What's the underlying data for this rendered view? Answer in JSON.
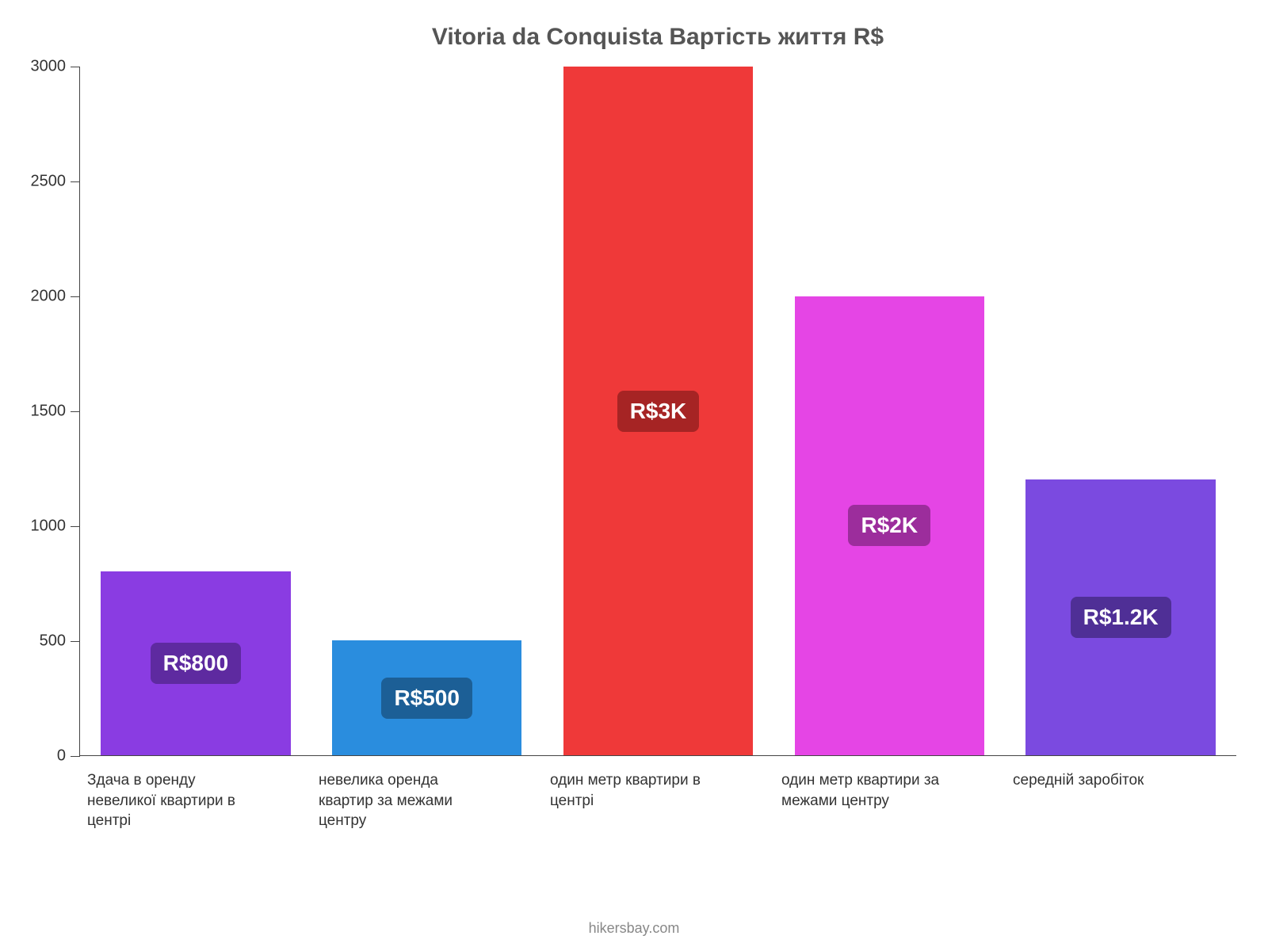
{
  "chart": {
    "type": "bar",
    "title": "Vitoria da Conquista Вартість життя R$",
    "title_color": "#555555",
    "title_fontsize": 30,
    "background_color": "#ffffff",
    "axis_color": "#444444",
    "label_color": "#333333",
    "label_fontsize": 19,
    "ytick_fontsize": 20,
    "ylim": [
      0,
      3000
    ],
    "ytick_step": 500,
    "yticks": [
      0,
      500,
      1000,
      1500,
      2000,
      2500,
      3000
    ],
    "bar_width": 0.82,
    "bars": [
      {
        "category": "Здача в оренду невеликої квартири в центрі",
        "value": 800,
        "value_label": "R$800",
        "color": "#8a3ce2",
        "label_bg": "#5e2aa0"
      },
      {
        "category": "невелика оренда квартир за межами центру",
        "value": 500,
        "value_label": "R$500",
        "color": "#2a8dde",
        "label_bg": "#1c5f96"
      },
      {
        "category": "один метр квартири в центрі",
        "value": 3000,
        "value_label": "R$3K",
        "color": "#ef3939",
        "label_bg": "#a62424"
      },
      {
        "category": "один метр квартири за межами центру",
        "value": 2000,
        "value_label": "R$2K",
        "color": "#e545e5",
        "label_bg": "#9c2d9c"
      },
      {
        "category": "середній заробіток",
        "value": 1200,
        "value_label": "R$1.2K",
        "color": "#7b4ae0",
        "label_bg": "#4f2f96"
      }
    ],
    "credit": "hikersbay.com",
    "credit_color": "#888888"
  }
}
